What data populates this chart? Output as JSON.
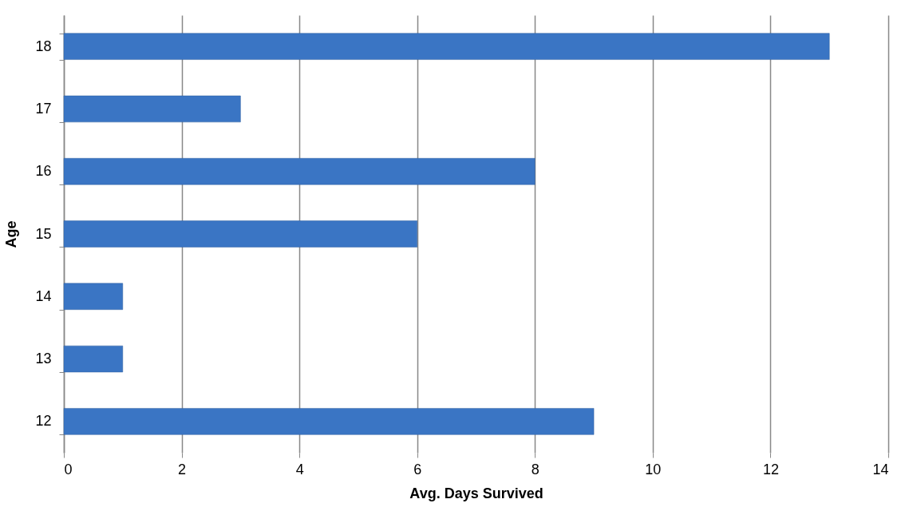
{
  "chart_data": {
    "type": "bar",
    "orientation": "horizontal",
    "xlabel": "Avg. Days Survived",
    "ylabel": "Age",
    "categories": [
      "18",
      "17",
      "16",
      "15",
      "14",
      "13",
      "12"
    ],
    "values": [
      13,
      3,
      8,
      6,
      1,
      1,
      9
    ],
    "color": "#3a75c4",
    "xlim": [
      0,
      14
    ],
    "xticks": [
      0,
      2,
      4,
      6,
      8,
      10,
      12,
      14
    ],
    "grid": "x"
  }
}
